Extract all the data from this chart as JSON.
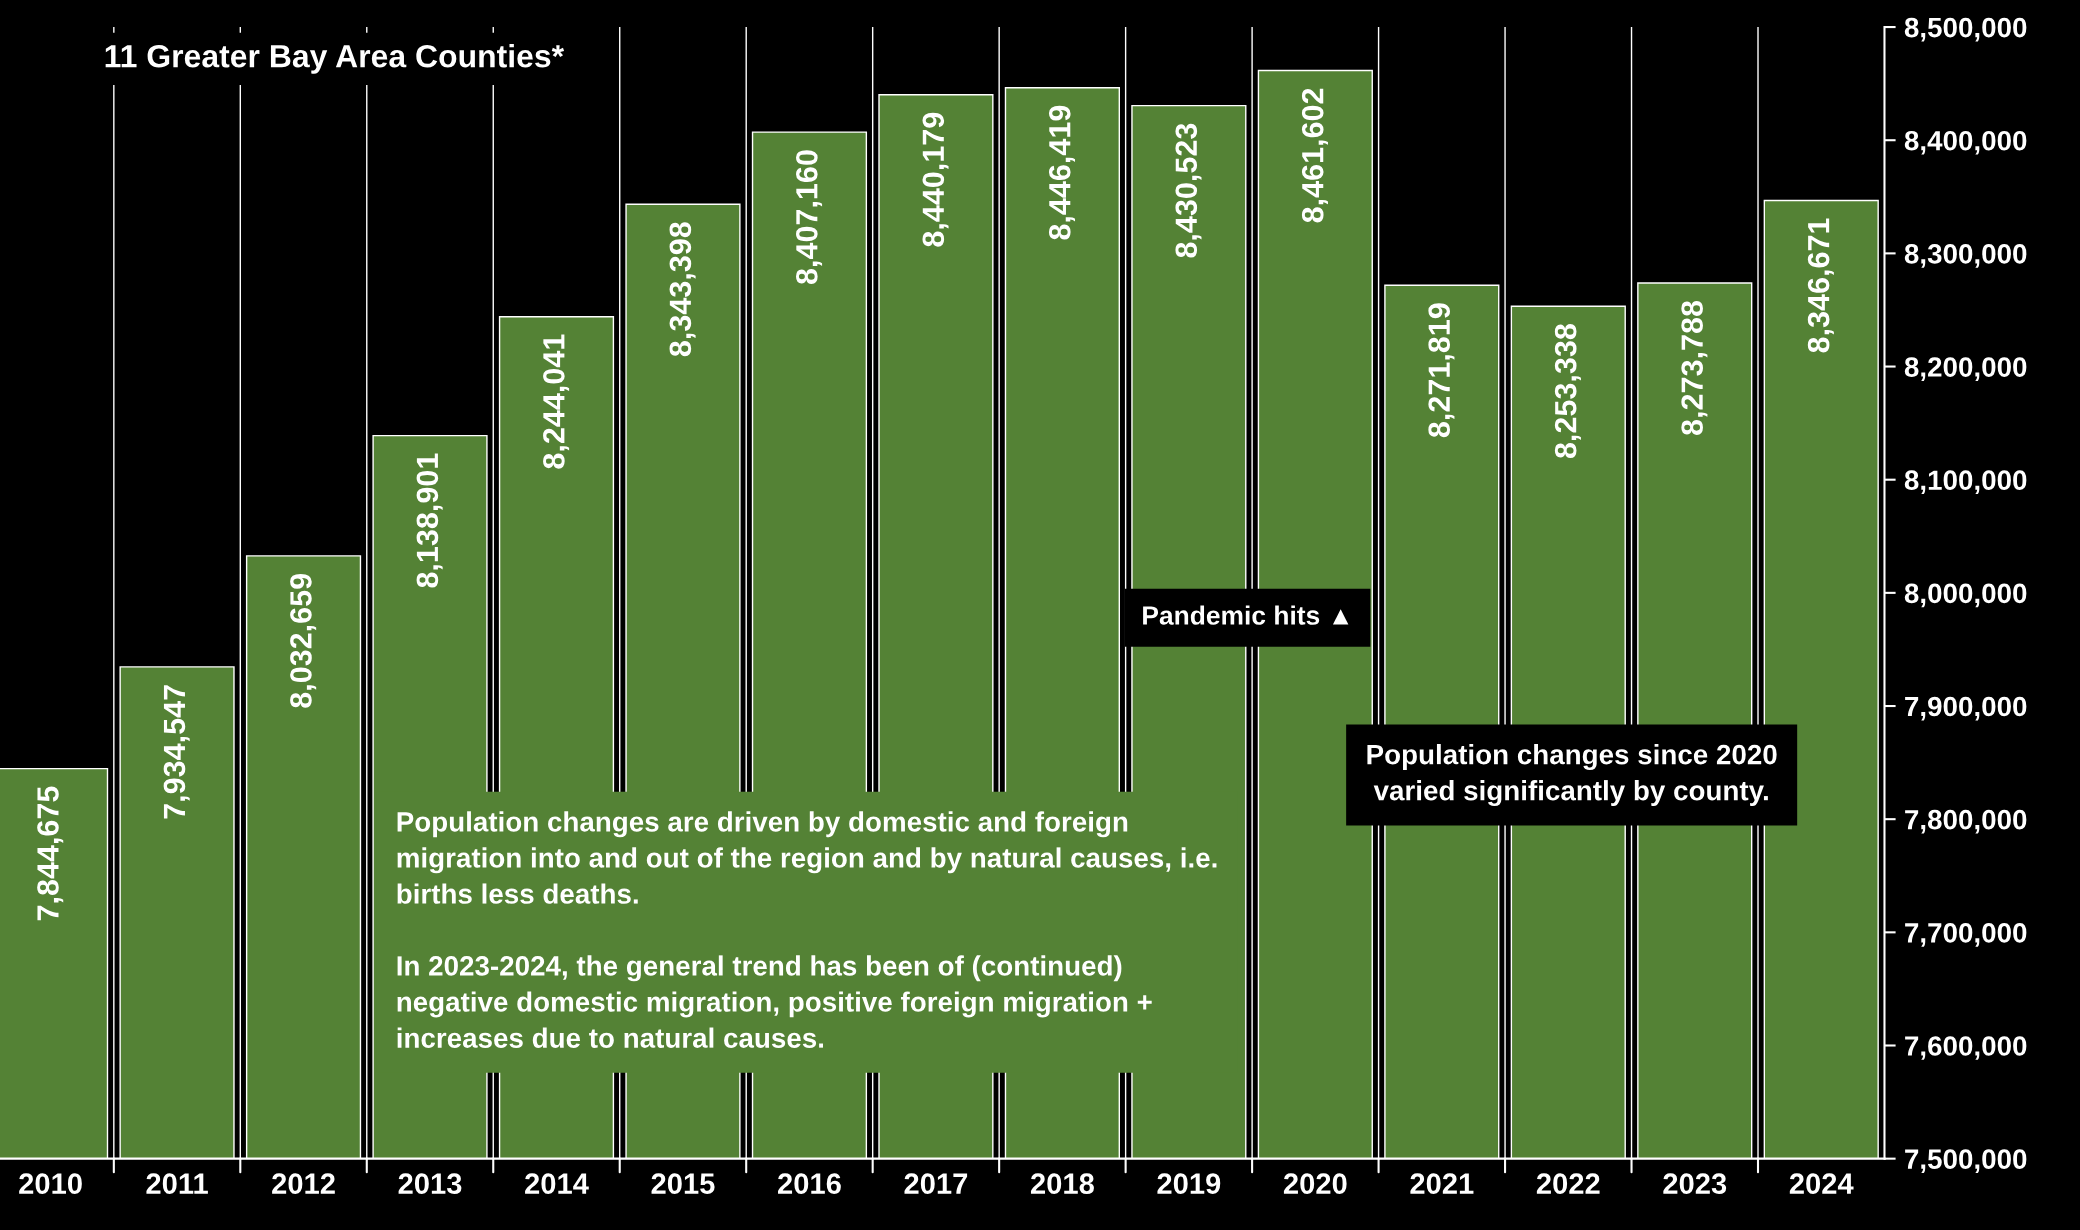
{
  "chart_data": {
    "type": "bar",
    "title": "11 Greater Bay Area Counties*",
    "categories": [
      "2010",
      "2011",
      "2012",
      "2013",
      "2014",
      "2015",
      "2016",
      "2017",
      "2018",
      "2019",
      "2020",
      "2021",
      "2022",
      "2023",
      "2024"
    ],
    "values": [
      7844675,
      7934547,
      8032659,
      8138901,
      8244041,
      8343398,
      8407160,
      8440179,
      8446419,
      8430523,
      8461602,
      8271819,
      8253338,
      8273788,
      8346671
    ],
    "color": "#548235",
    "ylim": [
      7500000,
      8500000
    ],
    "yticks": [
      {
        "value": 7500000,
        "label": "7,500,000"
      },
      {
        "value": 7600000,
        "label": "7,600,000"
      },
      {
        "value": 7700000,
        "label": "7,700,000"
      },
      {
        "value": 7800000,
        "label": "7,800,000"
      },
      {
        "value": 7900000,
        "label": "7,900,000"
      },
      {
        "value": 8000000,
        "label": "8,000,000"
      },
      {
        "value": 8100000,
        "label": "8,100,000"
      },
      {
        "value": 8200000,
        "label": "8,200,000"
      },
      {
        "value": 8300000,
        "label": "8,300,000"
      },
      {
        "value": 8400000,
        "label": "8,400,000"
      },
      {
        "value": 8500000,
        "label": "8,500,000"
      }
    ],
    "value_labels": [
      "7,844,675",
      "7,934,547",
      "8,032,659",
      "8,138,901",
      "8,244,041",
      "8,343,398",
      "8,407,160",
      "8,440,179",
      "8,446,419",
      "8,430,523",
      "8,461,602",
      "8,271,819",
      "8,253,338",
      "8,273,788",
      "8,346,671"
    ],
    "grid": "x",
    "annotations": [
      "Pandemic hits ▲",
      "Population changes are driven by domestic and foreign migration into and out of the region and by natural causes, i.e. births less deaths.\n\nIn 2023-2024, the general trend has been of (continued) negative domestic migration, positive foreign migration + increases due to natural causes.",
      "Population changes since 2020\nvaried significantly by county."
    ]
  }
}
